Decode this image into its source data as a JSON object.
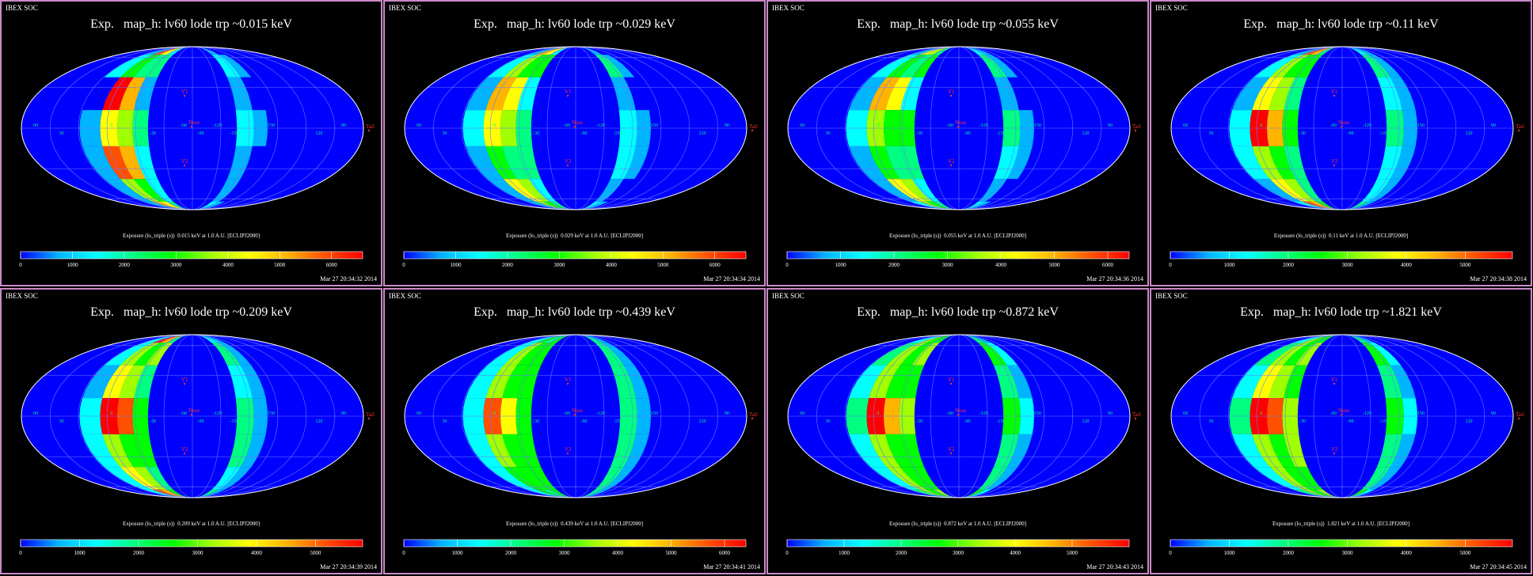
{
  "layout": {
    "rows": 2,
    "cols": 4
  },
  "colormap": [
    "#0000ff",
    "#00b4ff",
    "#00ffff",
    "#00ff80",
    "#00ff00",
    "#a0ff00",
    "#ffff00",
    "#ffb400",
    "#ff5000",
    "#ff0000"
  ],
  "chart_data": [
    {
      "type": "heatmap",
      "brand": "IBEX SOC",
      "title": "Exp.   map_h: lv60 lode trp ~0.015 keV",
      "colorbar_title": "Exposure (lo_triple (s))  0.015 keV at 1.0 A.U. [ECLIPJ2000]",
      "colorbar_ticks": [
        "0",
        "1000",
        "2000",
        "3000",
        "4000",
        "5000",
        "6000"
      ],
      "range": [
        0,
        6600
      ],
      "timestamp": "Mar 27 20:34:32 2014",
      "left_peak": 6200,
      "left_mid": 4200,
      "left_mid_cells": [
        5400,
        3000,
        6000,
        4400,
        5600,
        3400,
        5200
      ],
      "right_level": 1400,
      "right_cells": [
        1000,
        1800,
        700,
        1600,
        1200,
        900,
        1500
      ]
    },
    {
      "type": "heatmap",
      "brand": "IBEX SOC",
      "title": "Exp.   map_h: lv60 lode trp ~0.029 keV",
      "colorbar_title": "Exposure (lo_triple (s))  0.029 keV at 1.0 A.U. [ECLIPJ2000]",
      "colorbar_ticks": [
        "0",
        "1000",
        "2000",
        "3000",
        "4000",
        "5000",
        "6000"
      ],
      "range": [
        0,
        6600
      ],
      "timestamp": "Mar 27 20:34:34 2014",
      "left_peak": 5400,
      "left_mid": 4000,
      "left_mid_cells": [
        4800,
        3400,
        5200,
        4000,
        3000,
        4600,
        3800
      ],
      "right_level": 1500,
      "right_cells": [
        1200,
        2200,
        900,
        1800,
        1400,
        1000,
        1600
      ]
    },
    {
      "type": "heatmap",
      "brand": "IBEX SOC",
      "title": "Exp.   map_h: lv60 lode trp ~0.055 keV",
      "colorbar_title": "Exposure (lo_triple (s))  0.055 keV at 1.0 A.U. [ECLIPJ2000]",
      "colorbar_ticks": [
        "0",
        "1000",
        "2000",
        "3000",
        "4000",
        "5000",
        "6000"
      ],
      "range": [
        0,
        6400
      ],
      "timestamp": "Mar 27 20:34:36 2014",
      "left_peak": 5000,
      "left_mid": 3600,
      "left_mid_cells": [
        4400,
        2800,
        4800,
        3600,
        2600,
        4200,
        3400
      ],
      "right_level": 1700,
      "right_cells": [
        1400,
        2400,
        1100,
        2000,
        1600,
        1200,
        1800
      ]
    },
    {
      "type": "heatmap",
      "brand": "IBEX SOC",
      "title": "Exp.   map_h: lv60 lode trp ~0.11 keV",
      "colorbar_title": "Exposure (lo_triple (s))  0.11 keV at 1.0 A.U. [ECLIPJ2000]",
      "colorbar_ticks": [
        "0",
        "1000",
        "2000",
        "3000",
        "4000",
        "5000"
      ],
      "range": [
        0,
        5800
      ],
      "timestamp": "Mar 27 20:34:38 2014",
      "left_peak": 5600,
      "left_mid": 3400,
      "left_mid_cells": [
        5200,
        3000,
        4000,
        5400,
        3200,
        3600,
        5000
      ],
      "right_level": 1700,
      "right_cells": [
        1500,
        2200,
        1200,
        2000,
        1600,
        1300,
        1800
      ]
    },
    {
      "type": "heatmap",
      "brand": "IBEX SOC",
      "title": "Exp.   map_h: lv60 lode trp ~0.209 keV",
      "colorbar_title": "Exposure (lo_triple (s))  0.209 keV at 1.0 A.U. [ECLIPJ2000]",
      "colorbar_ticks": [
        "0",
        "1000",
        "2000",
        "3000",
        "4000",
        "5000"
      ],
      "range": [
        0,
        5800
      ],
      "timestamp": "Mar 27 20:34:39 2014",
      "left_peak": 5700,
      "left_mid": 3400,
      "left_mid_cells": [
        5300,
        3000,
        3800,
        5600,
        3200,
        3600,
        5200
      ],
      "right_level": 1900,
      "right_cells": [
        1700,
        2300,
        1500,
        2100,
        1800,
        1600,
        2000
      ]
    },
    {
      "type": "heatmap",
      "brand": "IBEX SOC",
      "title": "Exp.   map_h: lv60 lode trp ~0.439 keV",
      "colorbar_title": "Exposure (lo_triple (s))  0.439 keV at 1.0 A.U. [ECLIPJ2000]",
      "colorbar_ticks": [
        "0",
        "1000",
        "2000",
        "3000",
        "4000",
        "5000",
        "6000"
      ],
      "range": [
        0,
        6400
      ],
      "timestamp": "Mar 27 20:34:41 2014",
      "left_peak": 5200,
      "left_mid": 3200,
      "left_mid_cells": [
        3000,
        3200,
        3400,
        5200,
        3300,
        3100,
        3000
      ],
      "right_level": 2200,
      "right_cells": [
        2000,
        2400,
        2100,
        2300,
        2200,
        2000,
        2400
      ]
    },
    {
      "type": "heatmap",
      "brand": "IBEX SOC",
      "title": "Exp.   map_h: lv60 lode trp ~0.872 keV",
      "colorbar_title": "Exposure (lo_triple (s))  0.872 keV at 1.0 A.U. [ECLIPJ2000]",
      "colorbar_ticks": [
        "0",
        "1000",
        "2000",
        "3000",
        "4000",
        "5000"
      ],
      "range": [
        0,
        6000
      ],
      "timestamp": "Mar 27 20:34:43 2014",
      "left_peak": 5600,
      "left_mid": 3300,
      "left_mid_cells": [
        3100,
        3300,
        3500,
        5600,
        3400,
        3200,
        3100
      ],
      "right_level": 2300,
      "right_cells": [
        2100,
        2500,
        2200,
        2400,
        2300,
        2100,
        2500
      ]
    },
    {
      "type": "heatmap",
      "brand": "IBEX SOC",
      "title": "Exp.   map_h: lv60 lode trp ~1.821 keV",
      "colorbar_title": "Exposure (lo_triple (s))  1.821 keV at 1.0 A.U. [ECLIPJ2000]",
      "colorbar_ticks": [
        "0",
        "1000",
        "2000",
        "3000",
        "4000",
        "5000"
      ],
      "range": [
        0,
        5800
      ],
      "timestamp": "Mar 27 20:34:45 2014",
      "left_peak": 5500,
      "left_mid": 3300,
      "left_mid_cells": [
        3100,
        3300,
        3500,
        5500,
        3400,
        3200,
        3100
      ],
      "right_level": 2300,
      "right_cells": [
        2100,
        2500,
        2200,
        2400,
        2300,
        2100,
        2500
      ]
    }
  ],
  "map_labels": {
    "lon_labels": [
      "60",
      "30",
      "0",
      "-30",
      "-60",
      "-90",
      "-120",
      "-150",
      "150",
      "120",
      "90"
    ],
    "markers": [
      "V1",
      "V2",
      "Nose",
      "Tail"
    ]
  }
}
